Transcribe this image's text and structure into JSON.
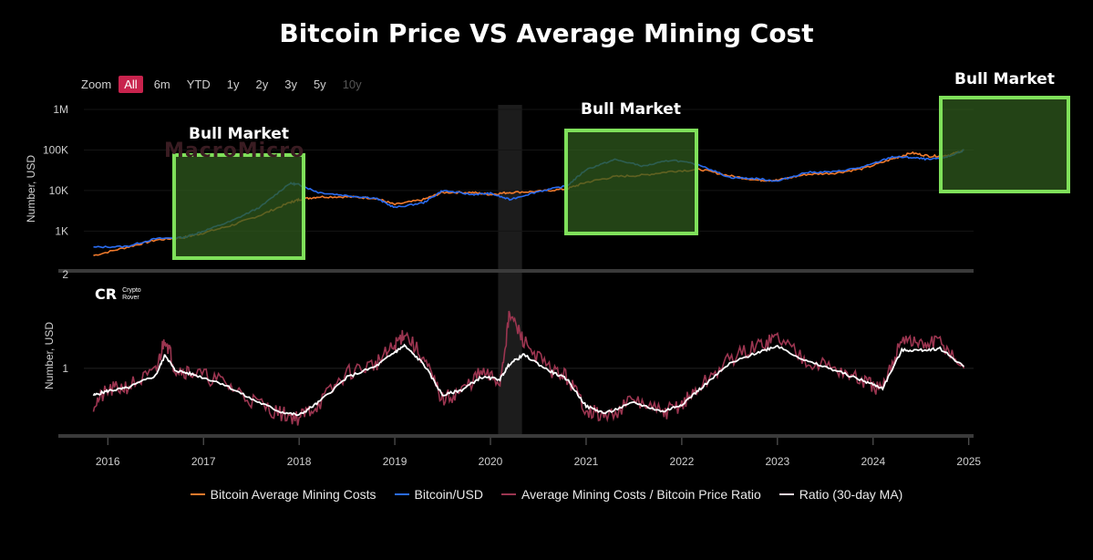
{
  "title": "Bitcoin Price VS Average Mining Cost",
  "zoom": {
    "label": "Zoom",
    "buttons": [
      "All",
      "6m",
      "YTD",
      "1y",
      "2y",
      "3y",
      "5y",
      "10y"
    ],
    "active": "All",
    "disabled": [
      "10y"
    ]
  },
  "watermark": "MacroMicro",
  "crypto_rover": {
    "mark": "CR",
    "line1": "Crypto",
    "line2": "Rover"
  },
  "annotations": [
    "Bull Market",
    "Bull Market",
    "Bull Market"
  ],
  "colors": {
    "mining_cost": "#f07a2c",
    "btc_usd": "#2a6cf0",
    "ratio": "#9b3550",
    "ratio_ma": "#ffffff",
    "bull_box_fill": "#2f5a1e",
    "bull_box_stroke": "#7fe05a"
  },
  "chart_data": [
    {
      "type": "line",
      "yscale": "log",
      "ylabel": "Number, USD",
      "yticks": [
        "1M",
        "100K",
        "10K",
        "1K",
        "2"
      ],
      "xticks": [
        "2016",
        "2017",
        "2018",
        "2019",
        "2020",
        "2021",
        "2022",
        "2023",
        "2024",
        "2025"
      ],
      "series": [
        {
          "name": "Bitcoin Average Mining Costs",
          "x": [
            2015.85,
            2016.2,
            2016.5,
            2016.8,
            2017.0,
            2017.3,
            2017.6,
            2017.9,
            2018.0,
            2018.2,
            2018.5,
            2018.8,
            2019.0,
            2019.3,
            2019.5,
            2019.8,
            2020.0,
            2020.2,
            2020.5,
            2020.8,
            2021.0,
            2021.3,
            2021.6,
            2021.9,
            2022.2,
            2022.5,
            2022.8,
            2023.0,
            2023.3,
            2023.6,
            2023.9,
            2024.2,
            2024.4,
            2024.6,
            2024.8,
            2024.95
          ],
          "values": [
            250,
            400,
            600,
            700,
            900,
            1400,
            2500,
            5000,
            6000,
            7000,
            7000,
            6500,
            4500,
            6000,
            9000,
            9000,
            8000,
            9000,
            9500,
            11000,
            16000,
            22000,
            24000,
            30000,
            33000,
            23000,
            18000,
            18000,
            25000,
            27000,
            35000,
            60000,
            85000,
            70000,
            75000,
            100000
          ]
        },
        {
          "name": "Bitcoin/USD",
          "x": [
            2015.85,
            2016.2,
            2016.5,
            2016.8,
            2017.0,
            2017.3,
            2017.6,
            2017.9,
            2018.0,
            2018.2,
            2018.5,
            2018.8,
            2019.0,
            2019.3,
            2019.5,
            2019.8,
            2020.0,
            2020.2,
            2020.5,
            2020.8,
            2021.0,
            2021.3,
            2021.6,
            2021.9,
            2022.2,
            2022.5,
            2022.8,
            2023.0,
            2023.3,
            2023.6,
            2023.9,
            2024.2,
            2024.4,
            2024.6,
            2024.8,
            2024.95
          ],
          "values": [
            400,
            420,
            650,
            700,
            1000,
            1800,
            4000,
            15000,
            14000,
            9000,
            7500,
            6500,
            3800,
            5000,
            10000,
            8000,
            8500,
            6000,
            9500,
            13000,
            33000,
            58000,
            40000,
            57000,
            42000,
            21000,
            19500,
            17000,
            28000,
            29000,
            38000,
            68000,
            65000,
            58000,
            70000,
            100000
          ]
        }
      ]
    },
    {
      "type": "line",
      "ylabel": "Number, USD",
      "yticks": [
        "2",
        "1"
      ],
      "xticks": [
        "2016",
        "2017",
        "2018",
        "2019",
        "2020",
        "2021",
        "2022",
        "2023",
        "2024",
        "2025"
      ],
      "series": [
        {
          "name": "Average Mining Costs / Bitcoin Price Ratio",
          "x": [
            2015.85,
            2016.0,
            2016.2,
            2016.5,
            2016.6,
            2016.7,
            2016.9,
            2017.2,
            2017.5,
            2017.8,
            2018.0,
            2018.2,
            2018.5,
            2018.8,
            2019.0,
            2019.1,
            2019.3,
            2019.5,
            2019.7,
            2019.9,
            2020.1,
            2020.2,
            2020.35,
            2020.6,
            2020.8,
            2021.0,
            2021.2,
            2021.5,
            2021.8,
            2022.0,
            2022.2,
            2022.5,
            2022.8,
            2023.0,
            2023.3,
            2023.6,
            2023.9,
            2024.1,
            2024.3,
            2024.5,
            2024.7,
            2024.95
          ],
          "values": [
            0.6,
            0.75,
            0.8,
            0.95,
            1.35,
            1.0,
            0.95,
            0.85,
            0.65,
            0.5,
            0.45,
            0.6,
            0.95,
            1.05,
            1.25,
            1.4,
            1.1,
            0.65,
            0.75,
            0.95,
            0.85,
            1.6,
            1.3,
            1.0,
            0.9,
            0.55,
            0.45,
            0.65,
            0.5,
            0.6,
            0.8,
            1.1,
            1.25,
            1.35,
            1.1,
            1.0,
            0.85,
            0.75,
            1.35,
            1.25,
            1.3,
            1.0
          ]
        },
        {
          "name": "Ratio (30-day MA)",
          "x": [
            2015.85,
            2016.0,
            2016.2,
            2016.5,
            2016.6,
            2016.7,
            2016.9,
            2017.2,
            2017.5,
            2017.8,
            2018.0,
            2018.2,
            2018.5,
            2018.8,
            2019.0,
            2019.1,
            2019.3,
            2019.5,
            2019.7,
            2019.9,
            2020.1,
            2020.2,
            2020.35,
            2020.6,
            2020.8,
            2021.0,
            2021.2,
            2021.5,
            2021.8,
            2022.0,
            2022.2,
            2022.5,
            2022.8,
            2023.0,
            2023.3,
            2023.6,
            2023.9,
            2024.1,
            2024.3,
            2024.5,
            2024.7,
            2024.95
          ],
          "values": [
            0.7,
            0.75,
            0.78,
            0.92,
            1.15,
            0.98,
            0.93,
            0.83,
            0.66,
            0.52,
            0.48,
            0.62,
            0.9,
            1.02,
            1.18,
            1.25,
            1.05,
            0.7,
            0.76,
            0.9,
            0.88,
            1.05,
            1.15,
            0.98,
            0.88,
            0.58,
            0.5,
            0.62,
            0.52,
            0.6,
            0.78,
            1.05,
            1.18,
            1.25,
            1.08,
            0.98,
            0.86,
            0.78,
            1.2,
            1.2,
            1.22,
            1.02
          ]
        }
      ]
    }
  ]
}
